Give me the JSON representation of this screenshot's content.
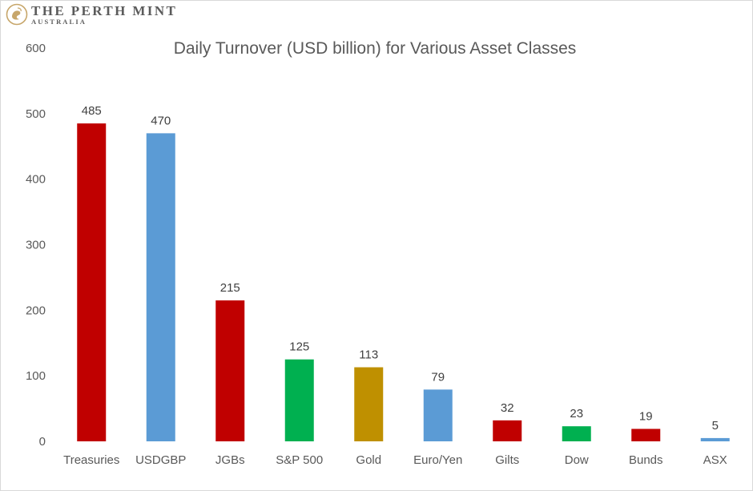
{
  "logo": {
    "name": "THE PERTH MINT",
    "sub": "AUSTRALIA",
    "icon": "swan-crest-icon"
  },
  "chart_data": {
    "type": "bar",
    "title": "Daily Turnover (USD billion) for Various Asset Classes",
    "xlabel": "",
    "ylabel": "",
    "ylim": [
      0,
      600
    ],
    "yticks": [
      0,
      100,
      200,
      300,
      400,
      500,
      600
    ],
    "grid": false,
    "legend": "none",
    "categories": [
      "Treasuries",
      "USDGBP",
      "JGBs",
      "S&P 500",
      "Gold",
      "Euro/Yen",
      "Gilts",
      "Dow",
      "Bunds",
      "ASX"
    ],
    "values": [
      485,
      470,
      215,
      125,
      113,
      79,
      32,
      23,
      19,
      5
    ],
    "data_labels": [
      "485",
      "470",
      "215",
      "125",
      "113",
      "79",
      "32",
      "23",
      "19",
      "5"
    ],
    "colors": [
      "#c00000",
      "#5b9bd5",
      "#c00000",
      "#00b050",
      "#bf9000",
      "#5b9bd5",
      "#c00000",
      "#00b050",
      "#c00000",
      "#5b9bd5"
    ],
    "text_color": "#595959"
  }
}
